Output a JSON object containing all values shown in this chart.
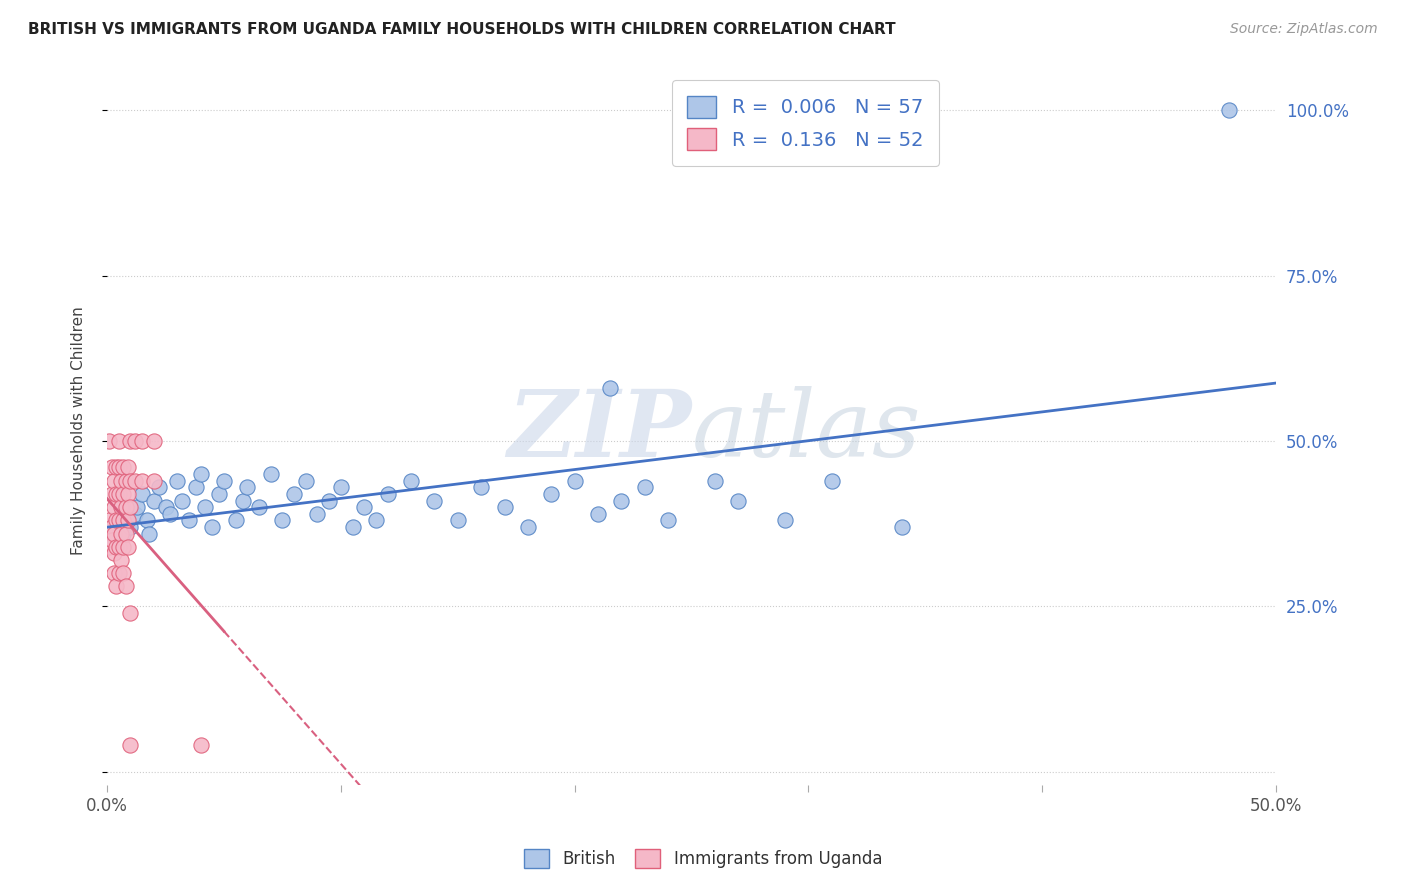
{
  "title": "BRITISH VS IMMIGRANTS FROM UGANDA FAMILY HOUSEHOLDS WITH CHILDREN CORRELATION CHART",
  "source": "Source: ZipAtlas.com",
  "ylabel": "Family Households with Children",
  "xlim": [
    0.0,
    0.5
  ],
  "ylim": [
    -0.02,
    1.05
  ],
  "xticks": [
    0.0,
    0.1,
    0.2,
    0.3,
    0.4,
    0.5
  ],
  "yticks": [
    0.0,
    0.25,
    0.5,
    0.75,
    1.0
  ],
  "xticklabels": [
    "0.0%",
    "",
    "",
    "",
    "",
    "50.0%"
  ],
  "yticklabels_right": [
    "",
    "25.0%",
    "50.0%",
    "75.0%",
    "100.0%"
  ],
  "watermark_zip": "ZIP",
  "watermark_atlas": "atlas",
  "british_color": "#aec6e8",
  "british_edge_color": "#5585c5",
  "uganda_color": "#f5b8c8",
  "uganda_edge_color": "#e0607a",
  "british_line_color": "#4472c4",
  "uganda_line_color": "#d96080",
  "legend_r_british": "0.006",
  "legend_n_british": "57",
  "legend_r_uganda": "0.136",
  "legend_n_uganda": "52",
  "legend_r_color": "#4472c4",
  "legend_n_color": "#4472c4",
  "british_scatter": [
    [
      0.003,
      0.355
    ],
    [
      0.005,
      0.37
    ],
    [
      0.007,
      0.36
    ],
    [
      0.008,
      0.38
    ],
    [
      0.01,
      0.37
    ],
    [
      0.012,
      0.39
    ],
    [
      0.013,
      0.4
    ],
    [
      0.015,
      0.42
    ],
    [
      0.017,
      0.38
    ],
    [
      0.018,
      0.36
    ],
    [
      0.02,
      0.41
    ],
    [
      0.022,
      0.43
    ],
    [
      0.025,
      0.4
    ],
    [
      0.027,
      0.39
    ],
    [
      0.03,
      0.44
    ],
    [
      0.032,
      0.41
    ],
    [
      0.035,
      0.38
    ],
    [
      0.038,
      0.43
    ],
    [
      0.04,
      0.45
    ],
    [
      0.042,
      0.4
    ],
    [
      0.045,
      0.37
    ],
    [
      0.048,
      0.42
    ],
    [
      0.05,
      0.44
    ],
    [
      0.055,
      0.38
    ],
    [
      0.058,
      0.41
    ],
    [
      0.06,
      0.43
    ],
    [
      0.065,
      0.4
    ],
    [
      0.07,
      0.45
    ],
    [
      0.075,
      0.38
    ],
    [
      0.08,
      0.42
    ],
    [
      0.085,
      0.44
    ],
    [
      0.09,
      0.39
    ],
    [
      0.095,
      0.41
    ],
    [
      0.1,
      0.43
    ],
    [
      0.105,
      0.37
    ],
    [
      0.11,
      0.4
    ],
    [
      0.115,
      0.38
    ],
    [
      0.12,
      0.42
    ],
    [
      0.13,
      0.44
    ],
    [
      0.14,
      0.41
    ],
    [
      0.15,
      0.38
    ],
    [
      0.16,
      0.43
    ],
    [
      0.17,
      0.4
    ],
    [
      0.18,
      0.37
    ],
    [
      0.19,
      0.42
    ],
    [
      0.2,
      0.44
    ],
    [
      0.21,
      0.39
    ],
    [
      0.215,
      0.58
    ],
    [
      0.22,
      0.41
    ],
    [
      0.23,
      0.43
    ],
    [
      0.24,
      0.38
    ],
    [
      0.26,
      0.44
    ],
    [
      0.27,
      0.41
    ],
    [
      0.29,
      0.38
    ],
    [
      0.31,
      0.44
    ],
    [
      0.34,
      0.37
    ],
    [
      0.48,
      1.0
    ]
  ],
  "uganda_scatter": [
    [
      0.001,
      0.5
    ],
    [
      0.001,
      0.38
    ],
    [
      0.001,
      0.34
    ],
    [
      0.002,
      0.46
    ],
    [
      0.002,
      0.42
    ],
    [
      0.002,
      0.37
    ],
    [
      0.002,
      0.35
    ],
    [
      0.003,
      0.44
    ],
    [
      0.003,
      0.4
    ],
    [
      0.003,
      0.36
    ],
    [
      0.003,
      0.33
    ],
    [
      0.003,
      0.3
    ],
    [
      0.004,
      0.46
    ],
    [
      0.004,
      0.42
    ],
    [
      0.004,
      0.38
    ],
    [
      0.004,
      0.34
    ],
    [
      0.004,
      0.28
    ],
    [
      0.005,
      0.5
    ],
    [
      0.005,
      0.46
    ],
    [
      0.005,
      0.42
    ],
    [
      0.005,
      0.38
    ],
    [
      0.005,
      0.34
    ],
    [
      0.005,
      0.3
    ],
    [
      0.006,
      0.44
    ],
    [
      0.006,
      0.4
    ],
    [
      0.006,
      0.36
    ],
    [
      0.006,
      0.32
    ],
    [
      0.007,
      0.46
    ],
    [
      0.007,
      0.42
    ],
    [
      0.007,
      0.38
    ],
    [
      0.007,
      0.34
    ],
    [
      0.007,
      0.3
    ],
    [
      0.008,
      0.44
    ],
    [
      0.008,
      0.4
    ],
    [
      0.008,
      0.36
    ],
    [
      0.008,
      0.28
    ],
    [
      0.009,
      0.46
    ],
    [
      0.009,
      0.42
    ],
    [
      0.009,
      0.38
    ],
    [
      0.009,
      0.34
    ],
    [
      0.01,
      0.5
    ],
    [
      0.01,
      0.44
    ],
    [
      0.01,
      0.4
    ],
    [
      0.01,
      0.24
    ],
    [
      0.01,
      0.04
    ],
    [
      0.012,
      0.5
    ],
    [
      0.012,
      0.44
    ],
    [
      0.015,
      0.5
    ],
    [
      0.015,
      0.44
    ],
    [
      0.02,
      0.5
    ],
    [
      0.02,
      0.44
    ],
    [
      0.04,
      0.04
    ]
  ]
}
